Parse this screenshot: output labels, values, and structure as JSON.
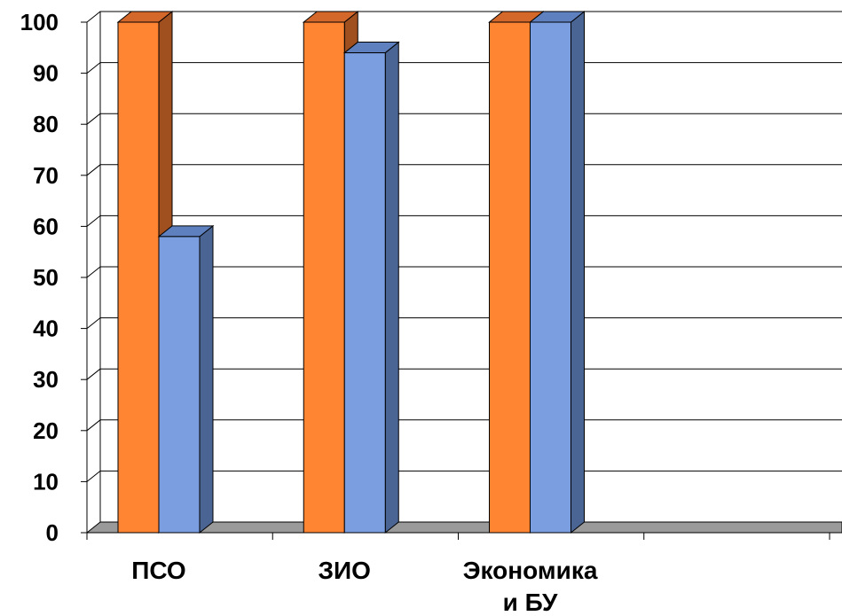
{
  "chart_data": {
    "type": "bar",
    "style": "3d-clustered-column",
    "categories": [
      [
        "ПСО"
      ],
      [
        "ЗИО"
      ],
      [
        "Экономика",
        "и БУ"
      ],
      [
        ""
      ]
    ],
    "series": [
      {
        "color": "#ff8533",
        "side_color": "#a04f1e",
        "top_color": "#d4682a",
        "values": [
          100,
          100,
          100,
          null
        ]
      },
      {
        "color": "#7a9ee0",
        "side_color": "#4a6494",
        "top_color": "#5f80bf",
        "values": [
          58,
          94,
          100,
          null
        ]
      }
    ],
    "ylim": [
      0,
      100
    ],
    "yticks": [
      0,
      10,
      20,
      30,
      40,
      50,
      60,
      70,
      80,
      90,
      100
    ],
    "grid": true,
    "legend": "none",
    "floor_color": "#9a9a9a"
  }
}
